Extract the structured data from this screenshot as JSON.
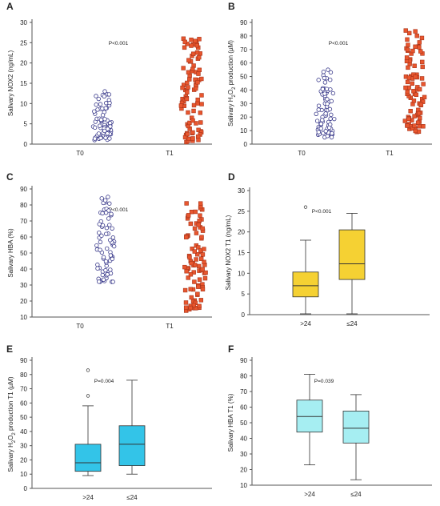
{
  "chart_data": [
    {
      "panel": "A",
      "type": "scatter",
      "ylabel": "Salivary NOX2 (ng/mL)",
      "ylim": [
        0,
        30
      ],
      "yticks": [
        0,
        5,
        10,
        15,
        20,
        25,
        30
      ],
      "categories": [
        "T0",
        "T1"
      ],
      "annotation": "P<0.001",
      "series": [
        {
          "category": "T0",
          "marker": "circle",
          "min": 1,
          "max": 13,
          "n": 75
        },
        {
          "category": "T1",
          "marker": "square",
          "min": 0.5,
          "max": 26,
          "n": 90
        }
      ]
    },
    {
      "panel": "B",
      "type": "scatter",
      "ylabel": "Salivary H2O2 production (µM)",
      "ylim": [
        0,
        90
      ],
      "yticks": [
        0,
        10,
        20,
        30,
        40,
        50,
        60,
        70,
        80,
        90
      ],
      "categories": [
        "T0",
        "T1"
      ],
      "annotation": "P<0.001",
      "series": [
        {
          "category": "T0",
          "marker": "circle",
          "min": 5,
          "max": 55,
          "n": 75
        },
        {
          "category": "T1",
          "marker": "square",
          "min": 9,
          "max": 84,
          "n": 90
        }
      ]
    },
    {
      "panel": "C",
      "type": "scatter",
      "ylabel": "Salivary HBA (%)",
      "ylim": [
        10,
        90
      ],
      "yticks": [
        10,
        20,
        30,
        40,
        50,
        60,
        70,
        80,
        90
      ],
      "categories": [
        "T0",
        "T1"
      ],
      "annotation": "P<0.001",
      "series": [
        {
          "category": "T0",
          "marker": "circle",
          "min": 32,
          "max": 85,
          "n": 75
        },
        {
          "category": "T1",
          "marker": "square",
          "min": 14,
          "max": 81,
          "n": 90
        }
      ]
    },
    {
      "panel": "D",
      "type": "box",
      "ylabel": "Salivary NOX2 T1 (ng/mL)",
      "ylim": [
        0,
        30
      ],
      "yticks": [
        0,
        5,
        10,
        15,
        20,
        25,
        30
      ],
      "categories": [
        ">24",
        "≤24"
      ],
      "annotation": "P<0.001",
      "fill": "#f5d133",
      "boxes": [
        {
          "category": ">24",
          "min": 0.2,
          "q1": 4.3,
          "median": 7,
          "q3": 10.3,
          "max": 18,
          "outliers": [
            26
          ]
        },
        {
          "category": "≤24",
          "min": 0.2,
          "q1": 8.5,
          "median": 12.3,
          "q3": 20.5,
          "max": 24.5,
          "outliers": []
        }
      ]
    },
    {
      "panel": "E",
      "type": "box",
      "ylabel": "Salivary H2O2 production T1 (µM)",
      "ylim": [
        0,
        90
      ],
      "yticks": [
        0,
        10,
        20,
        30,
        40,
        50,
        60,
        70,
        80,
        90
      ],
      "categories": [
        ">24",
        "≤24"
      ],
      "annotation": "P=0.004",
      "fill": "#33c4e8",
      "boxes": [
        {
          "category": ">24",
          "min": 9,
          "q1": 12,
          "median": 18,
          "q3": 31,
          "max": 58,
          "outliers": [
            65,
            83
          ]
        },
        {
          "category": "≤24",
          "min": 10,
          "q1": 16,
          "median": 31,
          "q3": 44,
          "max": 76,
          "outliers": []
        }
      ]
    },
    {
      "panel": "F",
      "type": "box",
      "ylabel": "Salivary HBA T1 (%)",
      "ylim": [
        10,
        90
      ],
      "yticks": [
        10,
        20,
        30,
        40,
        50,
        60,
        70,
        80,
        90
      ],
      "categories": [
        ">24",
        "≤24"
      ],
      "annotation": "P=0.039",
      "fill": "#a6eef2",
      "boxes": [
        {
          "category": ">24",
          "min": 23,
          "q1": 44,
          "median": 54,
          "q3": 64.5,
          "max": 81,
          "outliers": []
        },
        {
          "category": "≤24",
          "min": 13.5,
          "q1": 37,
          "median": 46.5,
          "q3": 57.5,
          "max": 68,
          "outliers": []
        }
      ]
    }
  ],
  "colors": {
    "circle_stroke": "#3c3c8c",
    "square_fill": "#e8562e",
    "square_stroke": "#a8341a",
    "axis": "#555555"
  }
}
